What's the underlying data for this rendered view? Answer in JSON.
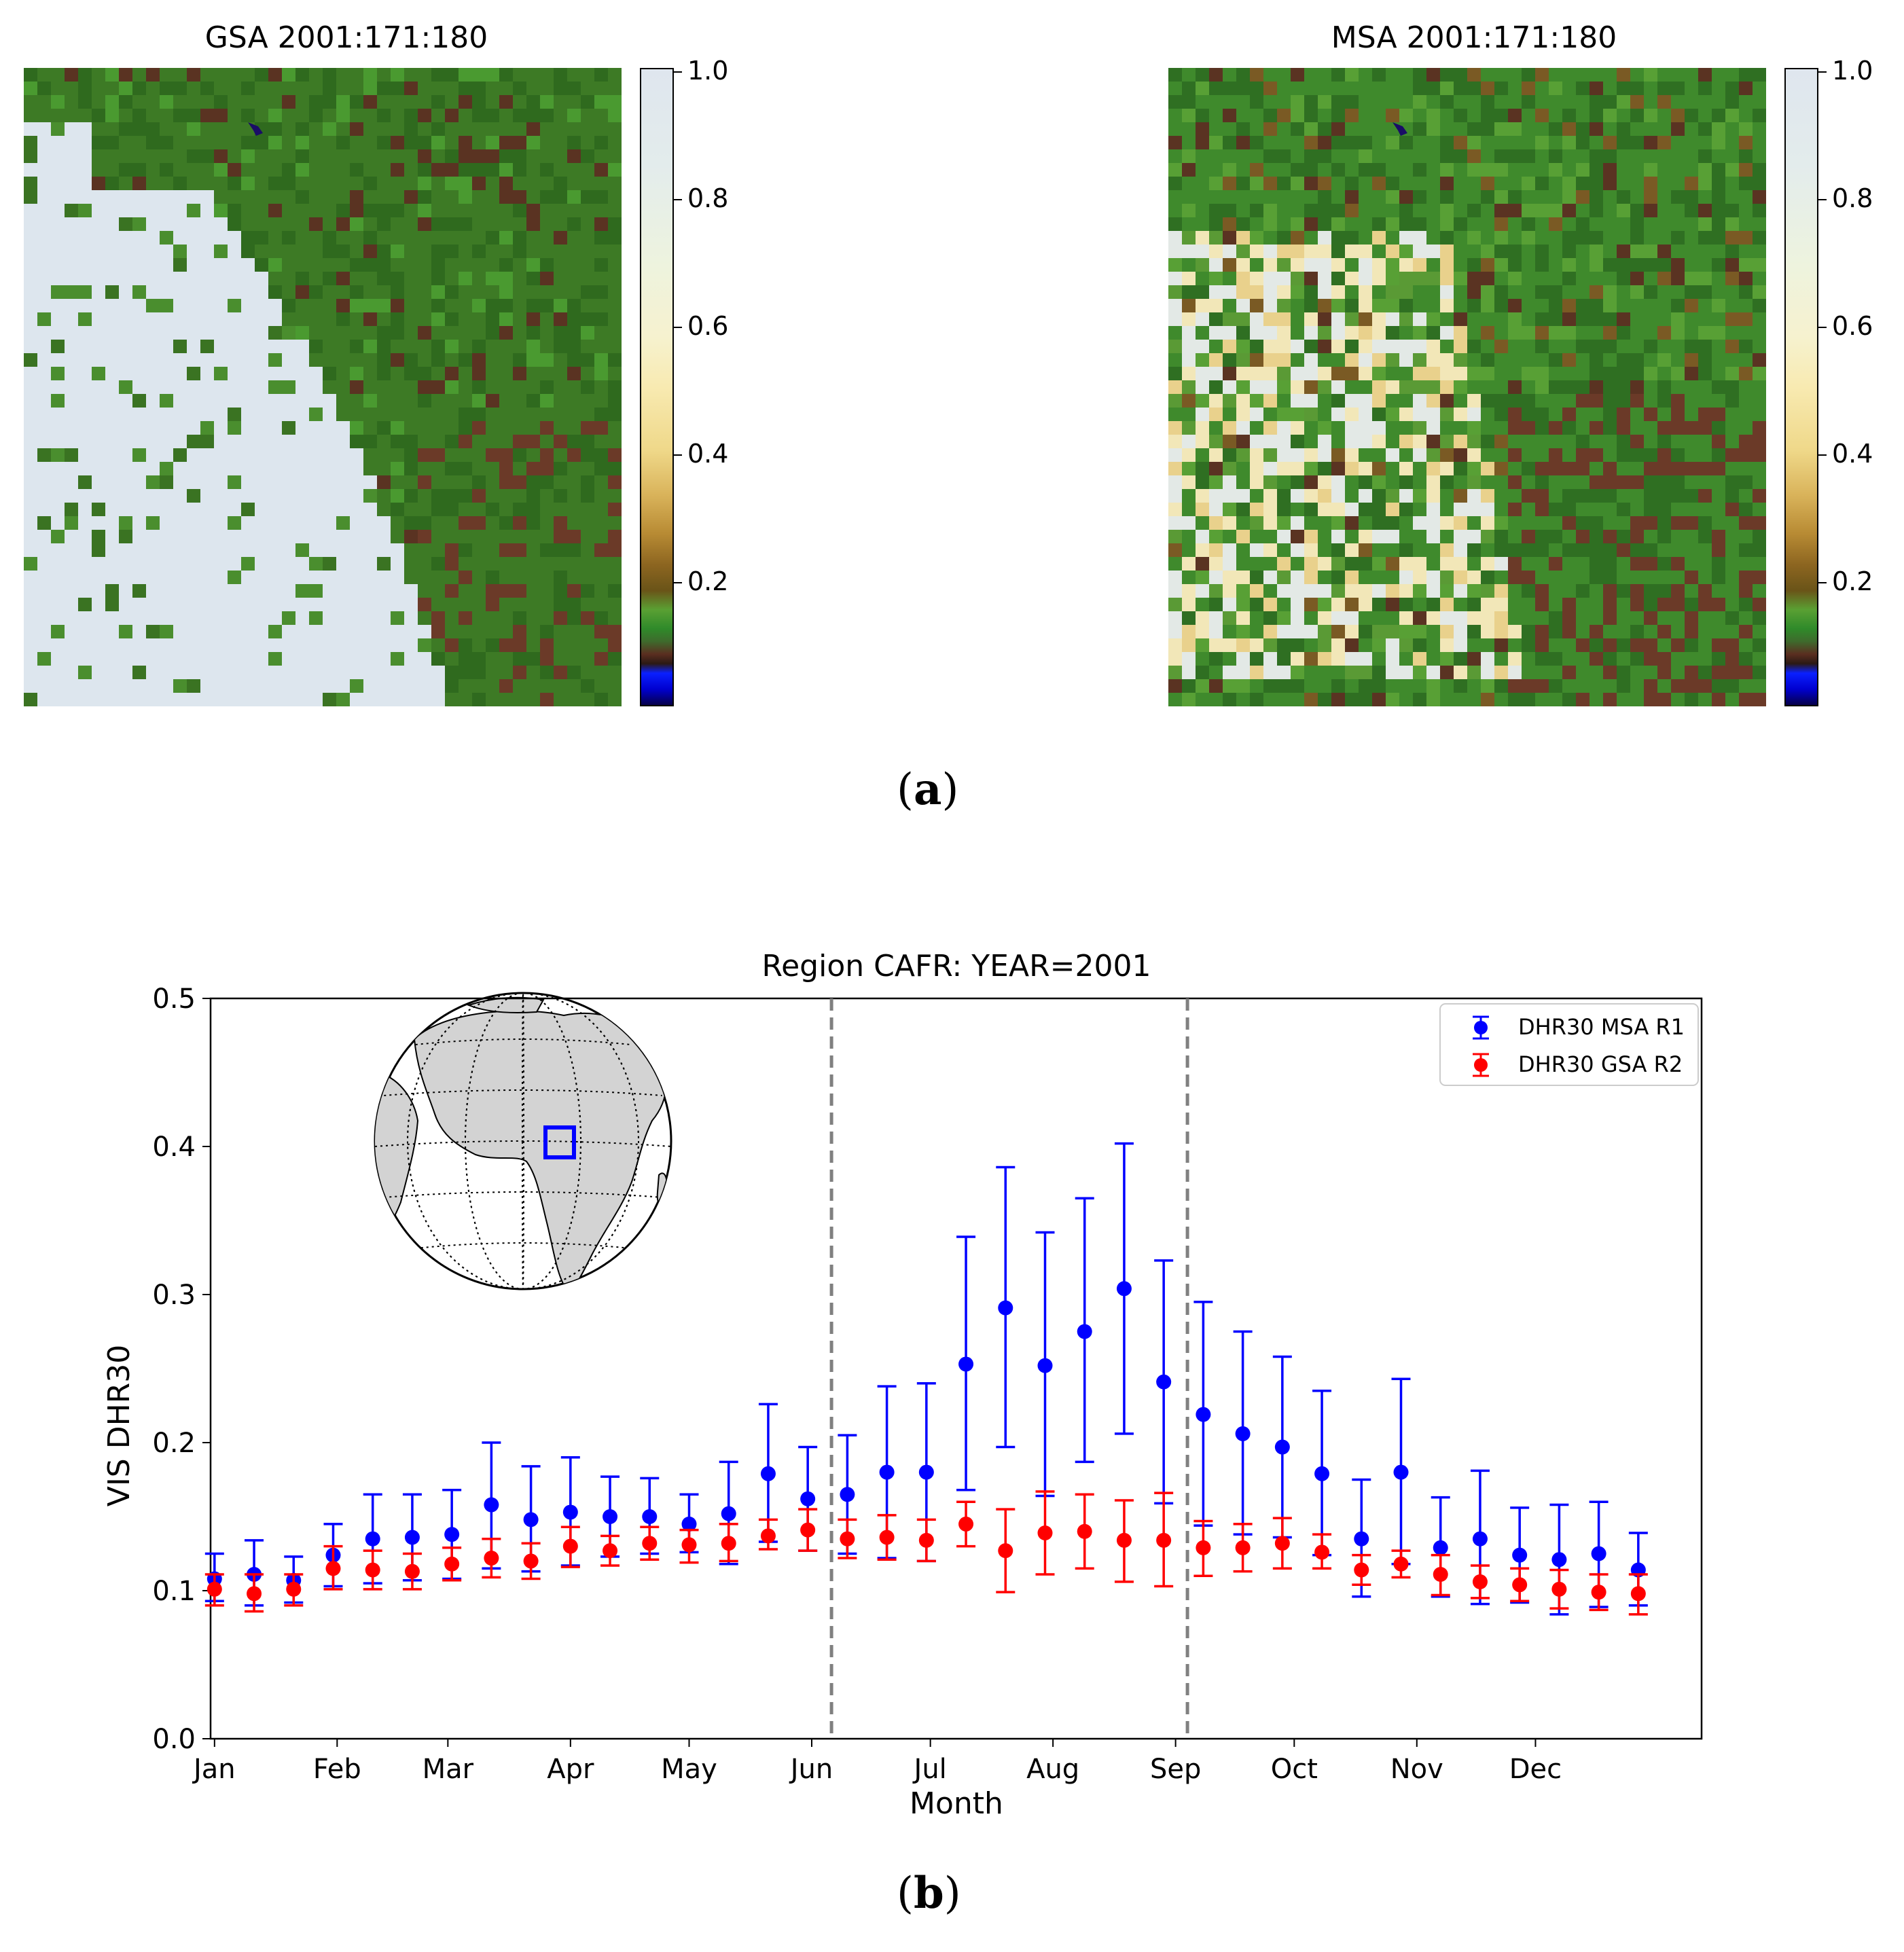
{
  "panel_a": {
    "label_open": "(",
    "label_letter": "a",
    "label_close": ")",
    "maps": [
      {
        "title": "GSA 2001:171:180",
        "colorbar_ticks": [
          "1.0",
          "0.8",
          "0.6",
          "0.4",
          "0.2"
        ]
      },
      {
        "title": "MSA 2001:171:180",
        "colorbar_ticks": [
          "1.0",
          "0.8",
          "0.6",
          "0.4",
          "0.2"
        ]
      }
    ]
  },
  "panel_b": {
    "label_open": "(",
    "label_letter": "b",
    "label_close": ")"
  },
  "colors": {
    "msa": "#0000ff",
    "gsa": "#ff0000",
    "vline": "#808080",
    "land": "#d3d3d3",
    "region_box": "#0000ff"
  },
  "chart_data": {
    "type": "scatter",
    "title": "Region CAFR: YEAR=2001",
    "xlabel": "Month",
    "ylabel": "VIS DHR30",
    "ylim": [
      0.0,
      0.5
    ],
    "xlim": [
      -1,
      376
    ],
    "yticks": [
      0.0,
      0.1,
      0.2,
      0.3,
      0.4,
      0.5
    ],
    "ytick_labels": [
      "0.0",
      "0.1",
      "0.2",
      "0.3",
      "0.4",
      "0.5"
    ],
    "xtick_days": [
      0,
      31,
      59,
      90,
      120,
      151,
      181,
      212,
      243,
      273,
      304,
      334
    ],
    "xtick_labels": [
      "Jan",
      "Feb",
      "Mar",
      "Apr",
      "May",
      "Jun",
      "Jul",
      "Aug",
      "Sep",
      "Oct",
      "Nov",
      "Dec"
    ],
    "vlines_day": [
      156,
      246
    ],
    "legend_position": "top-right",
    "x_day": [
      0,
      10,
      20,
      30,
      40,
      50,
      60,
      70,
      80,
      90,
      100,
      110,
      120,
      130,
      140,
      150,
      160,
      170,
      180,
      190,
      200,
      210,
      220,
      230,
      240,
      250,
      260,
      270,
      280,
      290,
      300,
      310,
      320,
      330,
      340,
      350,
      360
    ],
    "series": [
      {
        "name": "DHR30 MSA R1",
        "values": [
          0.108,
          0.111,
          0.107,
          0.124,
          0.135,
          0.136,
          0.138,
          0.158,
          0.148,
          0.153,
          0.15,
          0.15,
          0.145,
          0.152,
          0.179,
          0.162,
          0.165,
          0.18,
          0.18,
          0.253,
          0.291,
          0.252,
          0.275,
          0.304,
          0.241,
          0.219,
          0.206,
          0.197,
          0.179,
          0.135,
          0.18,
          0.129,
          0.135,
          0.124,
          0.121,
          0.125,
          0.114
        ],
        "upper": [
          0.125,
          0.134,
          0.123,
          0.145,
          0.165,
          0.165,
          0.168,
          0.2,
          0.184,
          0.19,
          0.177,
          0.176,
          0.165,
          0.187,
          0.226,
          0.197,
          0.205,
          0.238,
          0.24,
          0.339,
          0.386,
          0.342,
          0.365,
          0.402,
          0.323,
          0.295,
          0.275,
          0.258,
          0.235,
          0.175,
          0.243,
          0.163,
          0.181,
          0.156,
          0.158,
          0.16,
          0.139
        ],
        "lower": [
          0.093,
          0.09,
          0.092,
          0.103,
          0.105,
          0.107,
          0.108,
          0.115,
          0.113,
          0.117,
          0.123,
          0.125,
          0.126,
          0.118,
          0.133,
          0.127,
          0.125,
          0.122,
          0.12,
          0.168,
          0.197,
          0.164,
          0.187,
          0.206,
          0.159,
          0.144,
          0.138,
          0.136,
          0.124,
          0.096,
          0.118,
          0.096,
          0.091,
          0.092,
          0.084,
          0.089,
          0.09
        ]
      },
      {
        "name": "DHR30 GSA R2",
        "values": [
          0.101,
          0.098,
          0.101,
          0.115,
          0.114,
          0.113,
          0.118,
          0.122,
          0.12,
          0.13,
          0.127,
          0.132,
          0.131,
          0.132,
          0.137,
          0.141,
          0.135,
          0.136,
          0.134,
          0.145,
          0.127,
          0.139,
          0.14,
          0.134,
          0.134,
          0.129,
          0.129,
          0.132,
          0.126,
          0.114,
          0.118,
          0.111,
          0.106,
          0.104,
          0.101,
          0.099,
          0.098
        ],
        "upper": [
          0.111,
          0.111,
          0.111,
          0.13,
          0.127,
          0.125,
          0.129,
          0.135,
          0.132,
          0.143,
          0.137,
          0.143,
          0.141,
          0.145,
          0.148,
          0.155,
          0.148,
          0.151,
          0.148,
          0.16,
          0.155,
          0.167,
          0.165,
          0.161,
          0.166,
          0.147,
          0.145,
          0.149,
          0.138,
          0.124,
          0.127,
          0.124,
          0.117,
          0.115,
          0.114,
          0.111,
          0.111
        ],
        "lower": [
          0.09,
          0.086,
          0.09,
          0.101,
          0.101,
          0.101,
          0.107,
          0.109,
          0.108,
          0.116,
          0.117,
          0.121,
          0.119,
          0.12,
          0.128,
          0.127,
          0.122,
          0.121,
          0.12,
          0.13,
          0.099,
          0.111,
          0.115,
          0.106,
          0.103,
          0.11,
          0.113,
          0.115,
          0.115,
          0.104,
          0.109,
          0.097,
          0.095,
          0.093,
          0.088,
          0.087,
          0.084
        ]
      }
    ]
  }
}
